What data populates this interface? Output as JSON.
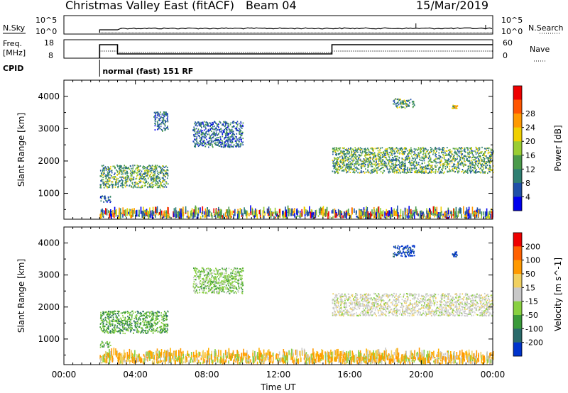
{
  "header": {
    "title": "Christmas Valley East (fitACF)",
    "beam": "Beam 04",
    "date": "15/Mar/2019"
  },
  "top_panels": {
    "nsky": {
      "label": "N.Sky",
      "ticks": [
        "10^5",
        "10^0"
      ]
    },
    "nsearch": {
      "label": "N.Search",
      "ticks": [
        "10^5",
        "10^0"
      ]
    },
    "freq": {
      "label_lines": [
        "Freq.",
        "[MHz]"
      ],
      "ticks": [
        "18",
        "8"
      ]
    },
    "nave": {
      "label": "Nave",
      "ticks": [
        "60",
        "0"
      ]
    },
    "cpid": {
      "label": "CPID",
      "mode": "normal (fast) 151 RF"
    }
  },
  "chart_data": [
    {
      "type": "heatmap",
      "panel": "power",
      "ylabel": "Slant Range [km]",
      "yticks": [
        "1000",
        "2000",
        "3000",
        "4000"
      ],
      "ylim": [
        200,
        4500
      ],
      "xlim": [
        0,
        24
      ],
      "colorbar": {
        "label": "Power [dB]",
        "ticks": [
          "4",
          "8",
          "12",
          "16",
          "20",
          "24",
          "28"
        ],
        "colors": [
          "#0000ee",
          "#1f4fa8",
          "#2f7f72",
          "#4a9a4a",
          "#9acd32",
          "#f0d000",
          "#ff9900",
          "#ff5500",
          "#ee0000"
        ]
      },
      "regions": [
        {
          "t": [
            2.0,
            5.8
          ],
          "r": [
            1150,
            1850
          ],
          "dominant": "power-green"
        },
        {
          "t": [
            2.0,
            2.6
          ],
          "r": [
            700,
            900
          ],
          "dominant": "power-blue"
        },
        {
          "t": [
            5.0,
            5.8
          ],
          "r": [
            2900,
            3500
          ],
          "dominant": "power-blue"
        },
        {
          "t": [
            7.2,
            10.0
          ],
          "r": [
            2400,
            3200
          ],
          "dominant": "power-blue"
        },
        {
          "t": [
            15.0,
            24.0
          ],
          "r": [
            1600,
            2400
          ],
          "dominant": "power-green"
        },
        {
          "t": [
            18.4,
            19.6
          ],
          "r": [
            3600,
            3900
          ],
          "dominant": "power-green"
        },
        {
          "t": [
            21.7,
            22.0
          ],
          "r": [
            3600,
            3700
          ],
          "dominant": "power-orange"
        },
        {
          "t": [
            2.0,
            24.0
          ],
          "r": [
            200,
            400
          ],
          "dominant": "power-mixed"
        }
      ]
    },
    {
      "type": "heatmap",
      "panel": "velocity",
      "ylabel": "Slant Range [km]",
      "yticks": [
        "1000",
        "2000",
        "3000",
        "4000"
      ],
      "ylim": [
        200,
        4500
      ],
      "xlim": [
        0,
        24
      ],
      "colorbar": {
        "label": "Velocity [m s^-1]",
        "ticks": [
          "200",
          "100",
          "50",
          "15",
          "-15",
          "-50",
          "-100",
          "-200"
        ],
        "colors": [
          "#0033cc",
          "#2a6a6a",
          "#3a9a3a",
          "#88d040",
          "#c8c8c8",
          "#f0d060",
          "#ff9900",
          "#ff6000",
          "#ee0000"
        ]
      },
      "regions": [
        {
          "t": [
            2.0,
            5.8
          ],
          "r": [
            1150,
            1850
          ],
          "dominant": "vel-green"
        },
        {
          "t": [
            2.0,
            2.6
          ],
          "r": [
            700,
            900
          ],
          "dominant": "vel-lightgreen"
        },
        {
          "t": [
            7.2,
            10.0
          ],
          "r": [
            2400,
            3200
          ],
          "dominant": "vel-lightgreen"
        },
        {
          "t": [
            15.0,
            24.0
          ],
          "r": [
            1700,
            2400
          ],
          "dominant": "vel-grey"
        },
        {
          "t": [
            18.4,
            19.6
          ],
          "r": [
            3550,
            3900
          ],
          "dominant": "vel-blue"
        },
        {
          "t": [
            21.7,
            22.0
          ],
          "r": [
            3550,
            3700
          ],
          "dominant": "vel-blue"
        },
        {
          "t": [
            2.0,
            24.0
          ],
          "r": [
            200,
            500
          ],
          "dominant": "vel-orange"
        }
      ]
    }
  ],
  "xaxis": {
    "label": "Time UT",
    "ticks": [
      "00:00",
      "04:00",
      "08:00",
      "12:00",
      "16:00",
      "20:00",
      "00:00"
    ]
  }
}
